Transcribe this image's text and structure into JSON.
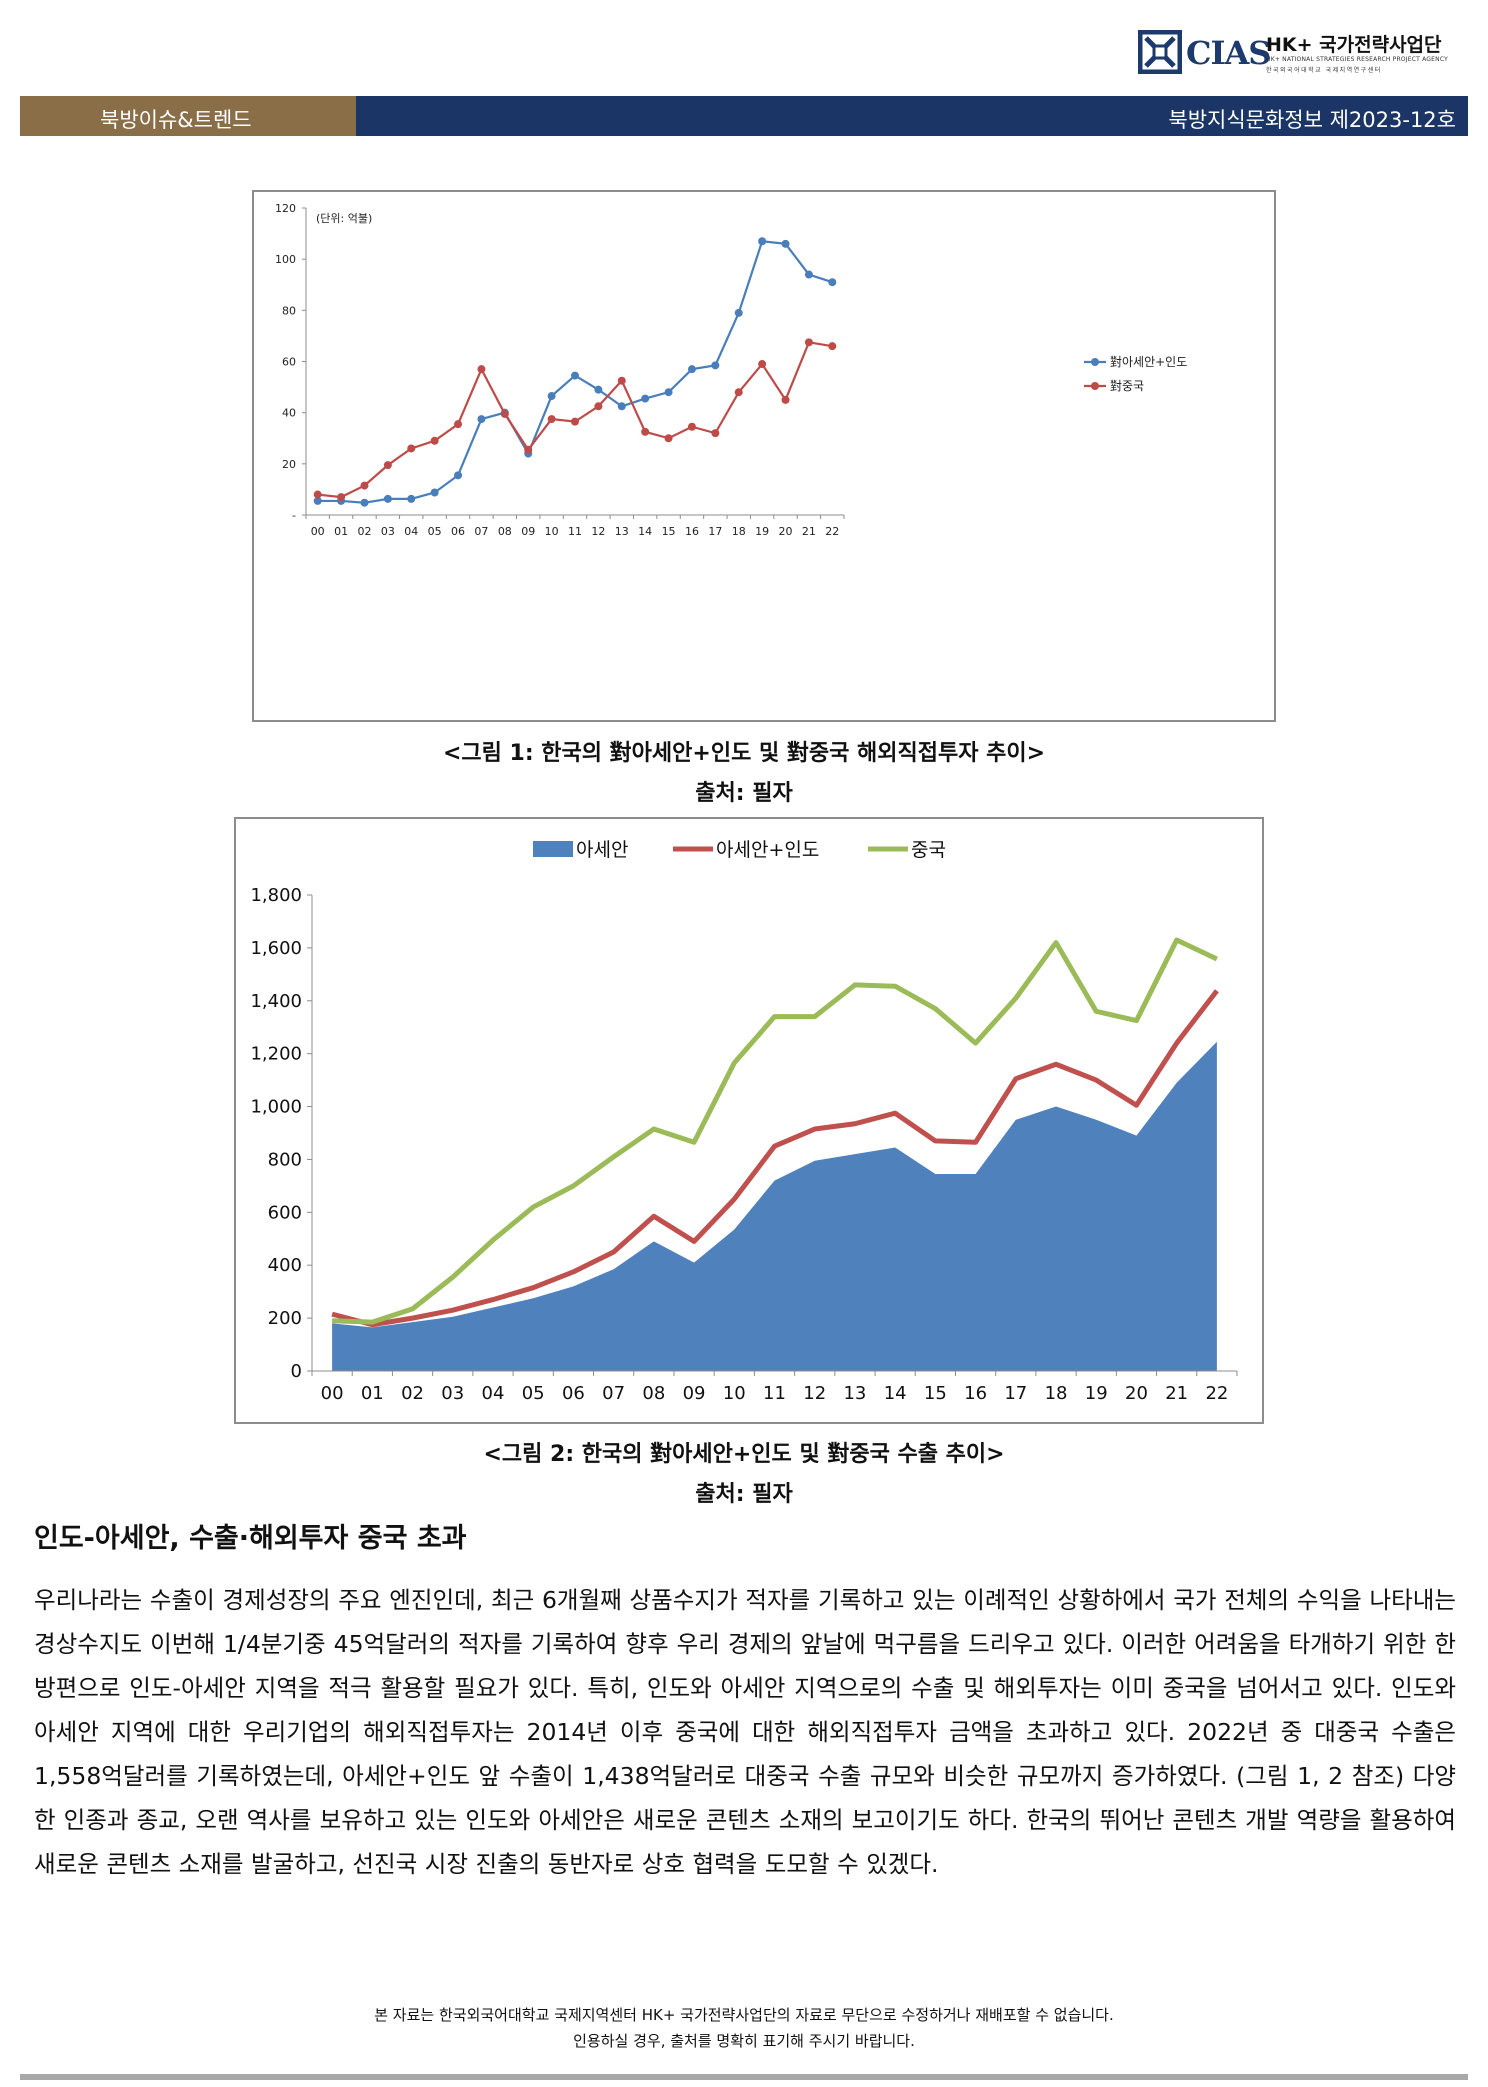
{
  "header": {
    "logo_text": "CIAS",
    "org_title": "HK+ 국가전략사업단",
    "org_sub_en": "HK+ NATIONAL STRATEGIES RESEARCH PROJECT AGENCY",
    "org_sub_ko": "한국외국어대학교 국제지역연구센터",
    "section_label": "북방이슈&트렌드",
    "issue_label": "북방지식문화정보 제2023-12호",
    "colors": {
      "bar_navy": "#1b3666",
      "bar_brown": "#8a6e48"
    }
  },
  "figure1": {
    "caption": "<그림 1: 한국의 對아세안+인도 및 對중국 해외직접투자 추이>",
    "source": "출처: 필자",
    "chart_data": {
      "type": "line",
      "unit_note": "(단위: 억불)",
      "categories": [
        "00",
        "01",
        "02",
        "03",
        "04",
        "05",
        "06",
        "07",
        "08",
        "09",
        "10",
        "11",
        "12",
        "13",
        "14",
        "15",
        "16",
        "17",
        "18",
        "19",
        "20",
        "21",
        "22"
      ],
      "ylim": [
        0,
        120
      ],
      "yticks": [
        "-",
        "20",
        "40",
        "60",
        "80",
        "100",
        "120"
      ],
      "grid": false,
      "legend_position": "right",
      "series": [
        {
          "name": "對아세안+인도",
          "color": "#4a7ebb",
          "values": [
            5.5,
            5.5,
            4.8,
            6.3,
            6.3,
            8.8,
            15.5,
            37.5,
            40,
            24,
            46.5,
            54.5,
            49,
            42.5,
            45.5,
            48,
            57,
            58.5,
            79,
            107,
            106,
            94,
            91
          ]
        },
        {
          "name": "對중국",
          "color": "#be4b48",
          "values": [
            8,
            7,
            11.5,
            19.5,
            26,
            29,
            35.5,
            57,
            39.5,
            25.5,
            37.5,
            36.5,
            42.5,
            52.5,
            32.5,
            30,
            34.5,
            32,
            48,
            59,
            45,
            67.5,
            66
          ]
        }
      ]
    }
  },
  "figure2": {
    "caption": "<그림 2: 한국의 對아세안+인도 및 對중국 수출 추이>",
    "source": "출처: 필자",
    "chart_data": {
      "type": "area",
      "categories": [
        "00",
        "01",
        "02",
        "03",
        "04",
        "05",
        "06",
        "07",
        "08",
        "09",
        "10",
        "11",
        "12",
        "13",
        "14",
        "15",
        "16",
        "17",
        "18",
        "19",
        "20",
        "21",
        "22"
      ],
      "ylim": [
        0,
        1800
      ],
      "yticks": [
        "0",
        "200",
        "400",
        "600",
        "800",
        "1,000",
        "1,200",
        "1,400",
        "1,600",
        "1,800"
      ],
      "grid": false,
      "legend_position": "top",
      "series": [
        {
          "name": "아세안",
          "kind": "area",
          "color": "#4f81bd",
          "values": [
            180,
            165,
            185,
            205,
            240,
            275,
            320,
            385,
            490,
            410,
            535,
            720,
            795,
            820,
            845,
            745,
            745,
            950,
            1000,
            950,
            890,
            1090,
            1245
          ]
        },
        {
          "name": "아세안+인도",
          "kind": "line",
          "color": "#c0504d",
          "values": [
            215,
            175,
            200,
            230,
            270,
            315,
            375,
            450,
            585,
            490,
            650,
            850,
            915,
            935,
            975,
            870,
            865,
            1105,
            1160,
            1100,
            1005,
            1240,
            1438
          ]
        },
        {
          "name": "중국",
          "kind": "line",
          "color": "#9bbb59",
          "values": [
            190,
            185,
            235,
            355,
            495,
            620,
            700,
            810,
            915,
            865,
            1165,
            1340,
            1340,
            1460,
            1455,
            1370,
            1240,
            1410,
            1620,
            1360,
            1325,
            1630,
            1558
          ]
        }
      ]
    }
  },
  "article": {
    "heading": "인도-아세안, 수출·해외투자 중국 초과",
    "body": " 우리나라는 수출이 경제성장의 주요 엔진인데, 최근 6개월째 상품수지가 적자를 기록하고 있는 이례적인 상황하에서 국가 전체의 수익을 나타내는 경상수지도 이번해 1/4분기중 45억달러의 적자를 기록하여 향후 우리 경제의 앞날에 먹구름을 드리우고 있다. 이러한 어려움을 타개하기 위한 한 방편으로 인도-아세안 지역을 적극 활용할 필요가 있다. 특히, 인도와 아세안 지역으로의 수출 및 해외투자는 이미 중국을 넘어서고 있다. 인도와 아세안 지역에 대한 우리기업의 해외직접투자는 2014년 이후 중국에 대한 해외직접투자 금액을 초과하고 있다. 2022년 중 대중국 수출은 1,558억달러를 기록하였는데, 아세안+인도 앞 수출이 1,438억달러로 대중국 수출 규모와 비슷한 규모까지 증가하였다. (그림 1, 2 참조) 다양한 인종과 종교, 오랜 역사를 보유하고 있는 인도와 아세안은 새로운 콘텐츠 소재의 보고이기도 하다. 한국의 뛰어난 콘텐츠 개발 역량을 활용하여 새로운 콘텐츠 소재를 발굴하고, 선진국 시장 진출의 동반자로 상호 협력을 도모할 수 있겠다."
  },
  "footer": {
    "line1": "본 자료는 한국외국어대학교 국제지역센터 HK+ 국가전략사업단의 자료로 무단으로 수정하거나 재배포할 수 없습니다.",
    "line2": "인용하실 경우, 출처를 명확히 표기해 주시기 바랍니다."
  }
}
